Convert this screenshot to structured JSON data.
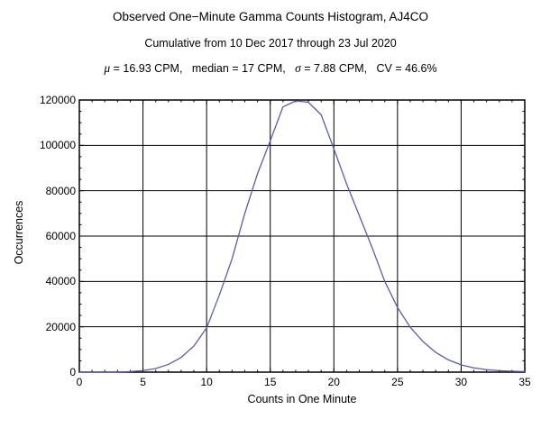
{
  "header": {
    "title": "Observed One−Minute Gamma Counts Histogram, AJ4CO",
    "subtitle": "Cumulative from 10 Dec 2017 through 23 Jul 2020",
    "stats_line": "μ = 16.93 CPM,   median = 17 CPM,   σ = 7.88 CPM,   CV = 46.6%",
    "stats_parts": [
      {
        "text": "μ",
        "italic": true
      },
      {
        "text": " = 16.93 CPM,   ",
        "italic": false
      },
      {
        "text": "median = 17 CPM,   ",
        "italic": false
      },
      {
        "text": "σ",
        "italic": true
      },
      {
        "text": " = 7.88 CPM,   CV = 46.6%",
        "italic": false
      }
    ]
  },
  "chart_data": {
    "type": "line",
    "title": "Observed One−Minute Gamma Counts Histogram, AJ4CO",
    "subtitle": "Cumulative from 10 Dec 2017 through 23 Jul 2020",
    "annotation": "μ = 16.93 CPM,   median = 17 CPM,   σ = 7.88 CPM,   CV = 46.6%",
    "xlabel": "Counts in One Minute",
    "ylabel": "Occurrences",
    "xlim": [
      0,
      35
    ],
    "ylim": [
      0,
      120000
    ],
    "xticks": [
      0,
      5,
      10,
      15,
      20,
      25,
      30,
      35
    ],
    "yticks": [
      0,
      20000,
      40000,
      60000,
      80000,
      100000,
      120000
    ],
    "x_minor_step": 1,
    "y_minor_step": 5000,
    "grid": true,
    "frame": true,
    "legend": "none",
    "line_color": "#5a5ab5",
    "frame_color": "#000000",
    "grid_color": "#000000",
    "x": [
      0,
      1,
      2,
      3,
      4,
      5,
      6,
      7,
      8,
      9,
      10,
      11,
      12,
      13,
      14,
      15,
      16,
      17,
      18,
      19,
      20,
      21,
      22,
      23,
      24,
      25,
      26,
      27,
      28,
      29,
      30,
      31,
      32,
      33,
      34,
      35
    ],
    "y": [
      0,
      0,
      10,
      60,
      250,
      700,
      1600,
      3400,
      6500,
      11500,
      19500,
      34000,
      50000,
      70000,
      87500,
      102000,
      117000,
      119600,
      119000,
      113500,
      98500,
      83000,
      69000,
      55000,
      40000,
      28500,
      19800,
      13500,
      8700,
      5400,
      3200,
      1900,
      1100,
      650,
      400,
      250
    ]
  }
}
